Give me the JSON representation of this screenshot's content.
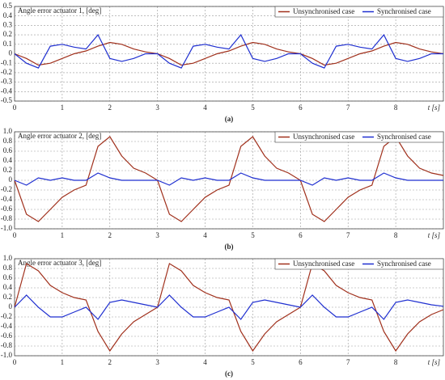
{
  "chart_data": [
    {
      "type": "line",
      "title": "Angle error actuator 1, [deg]",
      "x_label": "t [s]",
      "panel_label": "(a)",
      "x": [
        0,
        0.25,
        0.5,
        0.75,
        1,
        1.25,
        1.5,
        1.75,
        2,
        2.25,
        2.5,
        2.75,
        3,
        3.25,
        3.5,
        3.75,
        4,
        4.25,
        4.5,
        4.75,
        5,
        5.25,
        5.5,
        5.75,
        6,
        6.25,
        6.5,
        6.75,
        7,
        7.25,
        7.5,
        7.75,
        8,
        8.25,
        8.5,
        8.75,
        9
      ],
      "xlim": [
        0,
        9
      ],
      "xticks": [
        0,
        1,
        2,
        3,
        4,
        5,
        6,
        7,
        8
      ],
      "ylim": [
        -0.5,
        0.5
      ],
      "yticks": [
        0.5,
        0.4,
        0.3,
        0.2,
        0.1,
        0,
        -0.1,
        -0.2,
        -0.3,
        -0.4,
        -0.5
      ],
      "grid": true,
      "legend": "top-right",
      "series": [
        {
          "name": "Unsynchronised case",
          "color": "#a0301c",
          "values": [
            0,
            -0.05,
            -0.12,
            -0.1,
            -0.05,
            0,
            0.03,
            0.08,
            0.12,
            0.1,
            0.05,
            0.02,
            0,
            -0.05,
            -0.12,
            -0.1,
            -0.05,
            0,
            0.03,
            0.08,
            0.12,
            0.1,
            0.05,
            0.02,
            0,
            -0.05,
            -0.12,
            -0.1,
            -0.05,
            0,
            0.03,
            0.08,
            0.12,
            0.1,
            0.05,
            0.02,
            0
          ]
        },
        {
          "name": "Synchronised case",
          "color": "#1f2fd0",
          "values": [
            0,
            -0.1,
            -0.15,
            0.08,
            0.1,
            0.07,
            0.05,
            0.2,
            -0.05,
            -0.08,
            -0.05,
            0,
            0,
            -0.1,
            -0.15,
            0.08,
            0.1,
            0.07,
            0.05,
            0.2,
            -0.05,
            -0.08,
            -0.05,
            0,
            0,
            -0.1,
            -0.15,
            0.08,
            0.1,
            0.07,
            0.05,
            0.2,
            -0.05,
            -0.08,
            -0.05,
            0,
            0
          ]
        }
      ]
    },
    {
      "type": "line",
      "title": "Angle error actuator 2, [deg]",
      "x_label": "t [s]",
      "panel_label": "(b)",
      "x": [
        0,
        0.25,
        0.5,
        0.75,
        1,
        1.25,
        1.5,
        1.75,
        2,
        2.25,
        2.5,
        2.75,
        3,
        3.25,
        3.5,
        3.75,
        4,
        4.25,
        4.5,
        4.75,
        5,
        5.25,
        5.5,
        5.75,
        6,
        6.25,
        6.5,
        6.75,
        7,
        7.25,
        7.5,
        7.75,
        8,
        8.25,
        8.5,
        8.75,
        9
      ],
      "xlim": [
        0,
        9
      ],
      "xticks": [
        0,
        1,
        2,
        3,
        4,
        5,
        6,
        7,
        8
      ],
      "ylim": [
        -1,
        1
      ],
      "yticks": [
        {
          "value": 1,
          "label": "1.0"
        },
        0.8,
        0.6,
        0.4,
        0.2,
        0,
        -0.2,
        -0.4,
        -0.6,
        -0.8,
        {
          "value": -1,
          "label": "-1.0"
        }
      ],
      "grid": true,
      "legend": "top-right",
      "series": [
        {
          "name": "Unsynchronised case",
          "color": "#a0301c",
          "values": [
            0,
            -0.7,
            -0.85,
            -0.6,
            -0.35,
            -0.2,
            -0.1,
            0.7,
            0.9,
            0.5,
            0.25,
            0.15,
            0,
            -0.7,
            -0.85,
            -0.6,
            -0.35,
            -0.2,
            -0.1,
            0.7,
            0.9,
            0.5,
            0.25,
            0.15,
            0,
            -0.7,
            -0.85,
            -0.6,
            -0.35,
            -0.2,
            -0.1,
            0.7,
            0.9,
            0.5,
            0.25,
            0.15,
            0.1
          ]
        },
        {
          "name": "Synchronised case",
          "color": "#1f2fd0",
          "values": [
            0,
            -0.1,
            0.05,
            0,
            0.05,
            0,
            0,
            0.15,
            0.05,
            0,
            0,
            0,
            0,
            -0.1,
            0.05,
            0,
            0.05,
            0,
            0,
            0.15,
            0.05,
            0,
            0,
            0,
            0,
            -0.1,
            0.05,
            0,
            0.05,
            0,
            0,
            0.15,
            0.05,
            0,
            0,
            0,
            0
          ]
        }
      ]
    },
    {
      "type": "line",
      "title": "Angle error actuator 3, [deg]",
      "x_label": "t [s]",
      "panel_label": "(c)",
      "x": [
        0,
        0.25,
        0.5,
        0.75,
        1,
        1.25,
        1.5,
        1.75,
        2,
        2.25,
        2.5,
        2.75,
        3,
        3.25,
        3.5,
        3.75,
        4,
        4.25,
        4.5,
        4.75,
        5,
        5.25,
        5.5,
        5.75,
        6,
        6.25,
        6.5,
        6.75,
        7,
        7.25,
        7.5,
        7.75,
        8,
        8.25,
        8.5,
        8.75,
        9
      ],
      "xlim": [
        0,
        9
      ],
      "xticks": [
        0,
        1,
        2,
        3,
        4,
        5,
        6,
        7,
        8
      ],
      "ylim": [
        -1,
        1
      ],
      "yticks": [
        {
          "value": 1,
          "label": "1.0"
        },
        0.8,
        0.6,
        0.4,
        0.2,
        0,
        -0.2,
        -0.4,
        -0.6,
        -0.8,
        {
          "value": -1,
          "label": "-1.0"
        }
      ],
      "grid": true,
      "legend": "top-right",
      "series": [
        {
          "name": "Unsynchronised case",
          "color": "#a0301c",
          "values": [
            0,
            0.9,
            0.75,
            0.45,
            0.3,
            0.2,
            0.15,
            -0.5,
            -0.9,
            -0.55,
            -0.3,
            -0.15,
            0,
            0.9,
            0.75,
            0.45,
            0.3,
            0.2,
            0.15,
            -0.5,
            -0.9,
            -0.55,
            -0.3,
            -0.15,
            0,
            0.9,
            0.75,
            0.45,
            0.3,
            0.2,
            0.15,
            -0.5,
            -0.9,
            -0.55,
            -0.3,
            -0.15,
            -0.05
          ]
        },
        {
          "name": "Synchronised case",
          "color": "#1f2fd0",
          "values": [
            0,
            0.25,
            0,
            -0.2,
            -0.2,
            -0.1,
            0,
            -0.25,
            0.1,
            0.15,
            0.1,
            0.05,
            0,
            0.25,
            0,
            -0.2,
            -0.2,
            -0.1,
            0,
            -0.25,
            0.1,
            0.15,
            0.1,
            0.05,
            0,
            0.25,
            0,
            -0.2,
            -0.2,
            -0.1,
            0,
            -0.25,
            0.1,
            0.15,
            0.1,
            0.05,
            0.02
          ]
        }
      ]
    }
  ]
}
